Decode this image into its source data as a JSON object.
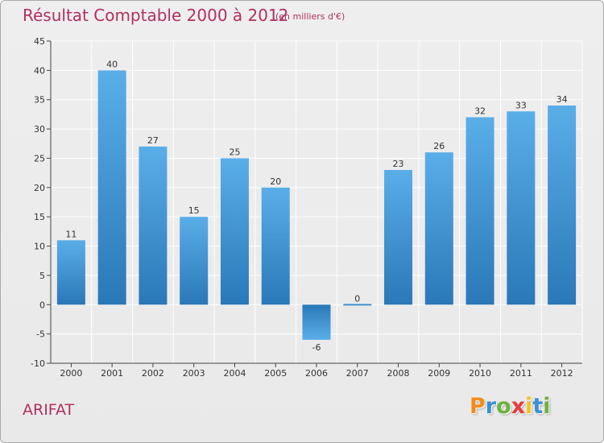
{
  "header": {
    "title": "Résultat Comptable 2000 à 2012",
    "subtitle": "(en milliers d'€)"
  },
  "footer": {
    "commune": "ARIFAT",
    "logo_text": "Proxiti",
    "logo_colors": [
      "#f28c1e",
      "#3a8fd6",
      "#6cb33f",
      "#e63c3c",
      "#f2c21e",
      "#3a8fd6",
      "#6cb33f"
    ]
  },
  "colors": {
    "bar_light": "#5aaee8",
    "bar_dark": "#2a78b8",
    "grid": "#ffffff",
    "axis": "#444444"
  },
  "chart_data": {
    "type": "bar",
    "title": "Résultat Comptable 2000 à 2012",
    "subtitle": "(en milliers d'€)",
    "categories": [
      "2000",
      "2001",
      "2002",
      "2003",
      "2004",
      "2005",
      "2006",
      "2007",
      "2008",
      "2009",
      "2010",
      "2011",
      "2012"
    ],
    "values": [
      11,
      40,
      27,
      15,
      25,
      20,
      -6,
      0,
      23,
      26,
      32,
      33,
      34
    ],
    "value_labels": [
      "11",
      "40",
      "27",
      "15",
      "25",
      "20",
      "-6",
      "0",
      "23",
      "26",
      "32",
      "33",
      "34"
    ],
    "ylim": [
      -10,
      45
    ],
    "yticks": [
      -10,
      -5,
      0,
      5,
      10,
      15,
      20,
      25,
      30,
      35,
      40,
      45
    ],
    "ytick_labels": [
      "-10",
      "-5",
      "0",
      "5",
      "10",
      "15",
      "20",
      "25",
      "30",
      "35",
      "40",
      "45"
    ],
    "xlabel": "",
    "ylabel": "",
    "grid": true,
    "legend": "none"
  }
}
